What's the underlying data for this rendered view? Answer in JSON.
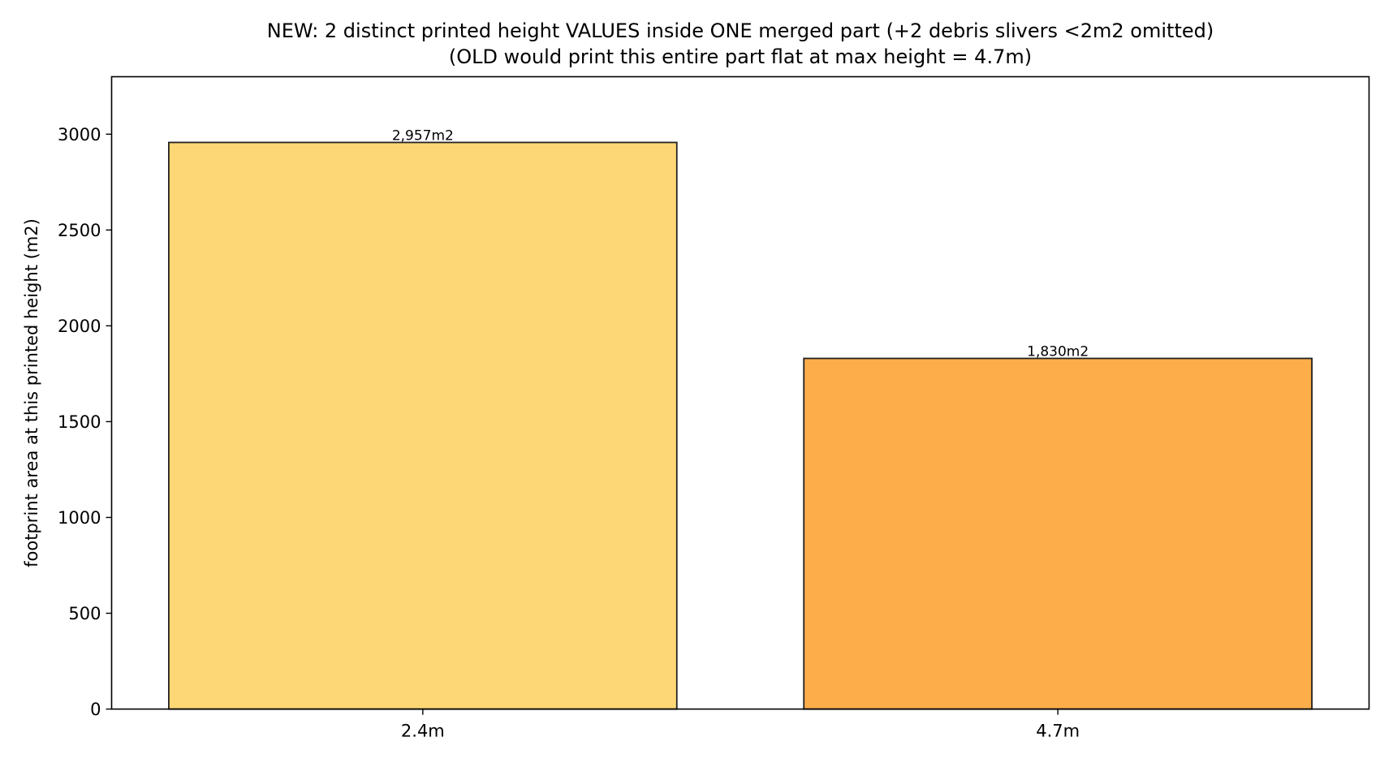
{
  "chart_data": {
    "type": "bar",
    "title": "NEW: 2 distinct printed height VALUES inside ONE merged part (+2 debris slivers <2m2 omitted)",
    "subtitle": "(OLD would print this entire part flat at max height = 4.7m)",
    "xlabel": "",
    "ylabel": "footprint area at this printed height (m2)",
    "categories": [
      "2.4m",
      "4.7m"
    ],
    "values": [
      2957,
      1830
    ],
    "bar_labels": [
      "2,957m2",
      "1,830m2"
    ],
    "bar_colors": [
      "#fdd776",
      "#fdae4b"
    ],
    "edge_color": "#222222",
    "ylim": [
      0,
      3300
    ],
    "yticks": [
      0,
      500,
      1000,
      1500,
      2000,
      2500,
      3000
    ],
    "grid": false,
    "legend": "none"
  }
}
